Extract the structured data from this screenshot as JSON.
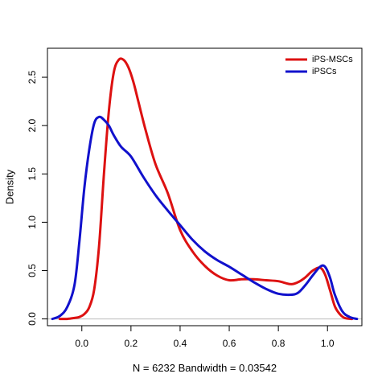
{
  "chart_data": {
    "type": "line",
    "title": "",
    "xlabel": "N = 6232   Bandwidth = 0.03542",
    "ylabel": "Density",
    "xlim": [
      -0.14,
      1.14
    ],
    "ylim": [
      -0.07,
      2.8
    ],
    "x_ticks": [
      {
        "value": 0.0,
        "label": "0.0"
      },
      {
        "value": 0.2,
        "label": "0.2"
      },
      {
        "value": 0.4,
        "label": "0.4"
      },
      {
        "value": 0.6,
        "label": "0.6"
      },
      {
        "value": 0.8,
        "label": "0.8"
      },
      {
        "value": 1.0,
        "label": "1.0"
      }
    ],
    "y_ticks": [
      {
        "value": 0.0,
        "label": "0.0"
      },
      {
        "value": 0.5,
        "label": "0.5"
      },
      {
        "value": 1.0,
        "label": "1.0"
      },
      {
        "value": 1.5,
        "label": "1.5"
      },
      {
        "value": 2.0,
        "label": "2.0"
      },
      {
        "value": 2.5,
        "label": "2.5"
      }
    ],
    "baseline": 0,
    "grid": false,
    "legend": {
      "position": "top-right"
    },
    "series": [
      {
        "name": "iPS-MSCs",
        "color": "#dd1111",
        "x": [
          -0.09,
          -0.06,
          -0.03,
          -0.01,
          0.01,
          0.03,
          0.05,
          0.07,
          0.09,
          0.11,
          0.13,
          0.15,
          0.17,
          0.19,
          0.21,
          0.23,
          0.26,
          0.3,
          0.35,
          0.4,
          0.45,
          0.5,
          0.55,
          0.6,
          0.65,
          0.7,
          0.75,
          0.8,
          0.85,
          0.88,
          0.91,
          0.94,
          0.97,
          0.99,
          1.01,
          1.03,
          1.05,
          1.07,
          1.1
        ],
        "y": [
          0.0,
          0.0,
          0.01,
          0.02,
          0.05,
          0.12,
          0.3,
          0.75,
          1.5,
          2.15,
          2.55,
          2.68,
          2.68,
          2.6,
          2.45,
          2.25,
          1.95,
          1.6,
          1.3,
          0.92,
          0.7,
          0.55,
          0.45,
          0.4,
          0.41,
          0.41,
          0.4,
          0.39,
          0.36,
          0.38,
          0.43,
          0.5,
          0.53,
          0.46,
          0.3,
          0.13,
          0.05,
          0.01,
          0.0
        ]
      },
      {
        "name": "iPSCs",
        "color": "#1111cc",
        "x": [
          -0.12,
          -0.09,
          -0.06,
          -0.03,
          -0.01,
          0.01,
          0.03,
          0.05,
          0.07,
          0.09,
          0.11,
          0.13,
          0.16,
          0.2,
          0.25,
          0.3,
          0.35,
          0.4,
          0.45,
          0.5,
          0.55,
          0.6,
          0.65,
          0.7,
          0.75,
          0.8,
          0.85,
          0.88,
          0.91,
          0.94,
          0.97,
          0.99,
          1.01,
          1.03,
          1.06,
          1.09,
          1.12
        ],
        "y": [
          0.0,
          0.03,
          0.12,
          0.35,
          0.8,
          1.35,
          1.75,
          2.02,
          2.09,
          2.06,
          2.0,
          1.9,
          1.78,
          1.68,
          1.47,
          1.28,
          1.12,
          0.97,
          0.82,
          0.7,
          0.61,
          0.54,
          0.46,
          0.38,
          0.31,
          0.26,
          0.25,
          0.27,
          0.35,
          0.45,
          0.54,
          0.54,
          0.43,
          0.25,
          0.08,
          0.02,
          0.0
        ]
      }
    ]
  }
}
